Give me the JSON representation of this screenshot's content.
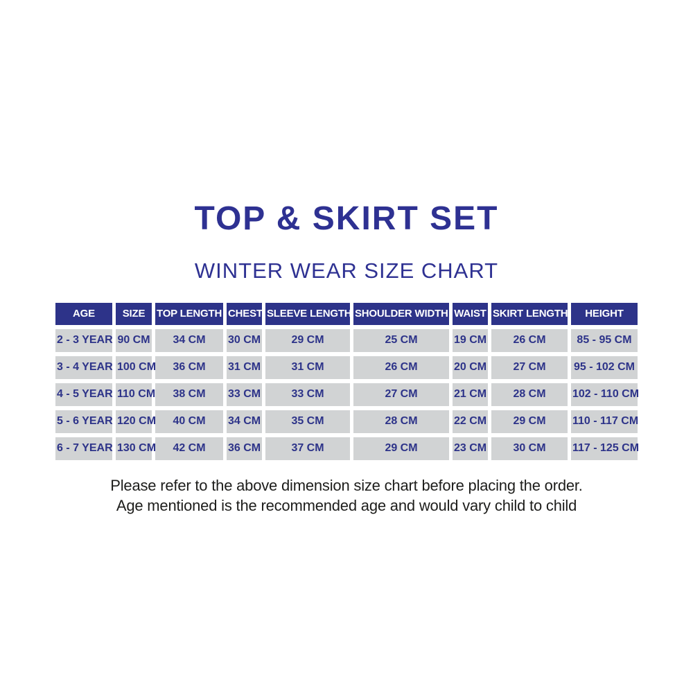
{
  "page": {
    "title": "TOP & SKIRT SET",
    "subtitle": "WINTER WEAR SIZE CHART"
  },
  "colors": {
    "title_text": "#2e3192",
    "header_bg": "#2d3389",
    "header_text": "#ffffff",
    "cell_bg": "#d1d3d4",
    "cell_text": "#2d3389",
    "footer_text": "#1d1d1b",
    "background": "#ffffff"
  },
  "chart_data": {
    "type": "table",
    "title": "TOP & SKIRT SET",
    "subtitle": "WINTER WEAR SIZE CHART",
    "columns": [
      "AGE",
      "SIZE",
      "TOP LENGTH",
      "CHEST",
      "SLEEVE LENGTH",
      "SHOULDER WIDTH",
      "WAIST",
      "SKIRT LENGTH",
      "HEIGHT"
    ],
    "rows": [
      [
        "2 - 3 YEAR",
        "90 CM",
        "34 CM",
        "30 CM",
        "29 CM",
        "25 CM",
        "19 CM",
        "26 CM",
        "85 - 95 CM"
      ],
      [
        "3 - 4 YEAR",
        "100 CM",
        "36 CM",
        "31 CM",
        "31 CM",
        "26 CM",
        "20 CM",
        "27 CM",
        "95 - 102 CM"
      ],
      [
        "4 - 5 YEAR",
        "110 CM",
        "38 CM",
        "33 CM",
        "33 CM",
        "27 CM",
        "21 CM",
        "28 CM",
        "102 - 110 CM"
      ],
      [
        "5 - 6 YEAR",
        "120 CM",
        "40 CM",
        "34 CM",
        "35 CM",
        "28 CM",
        "22 CM",
        "29 CM",
        "110 - 117 CM"
      ],
      [
        "6 - 7 YEAR",
        "130 CM",
        "42 CM",
        "36 CM",
        "37 CM",
        "29 CM",
        "23 CM",
        "30 CM",
        "117 - 125 CM"
      ]
    ],
    "units": "CM",
    "layout": {
      "grid": false,
      "header_style": "solid-navy",
      "cell_style": "light-gray"
    }
  },
  "footer": {
    "line1": "Please refer to the above dimension size chart before placing the order.",
    "line2": "Age mentioned is the recommended age and would vary child to child"
  }
}
